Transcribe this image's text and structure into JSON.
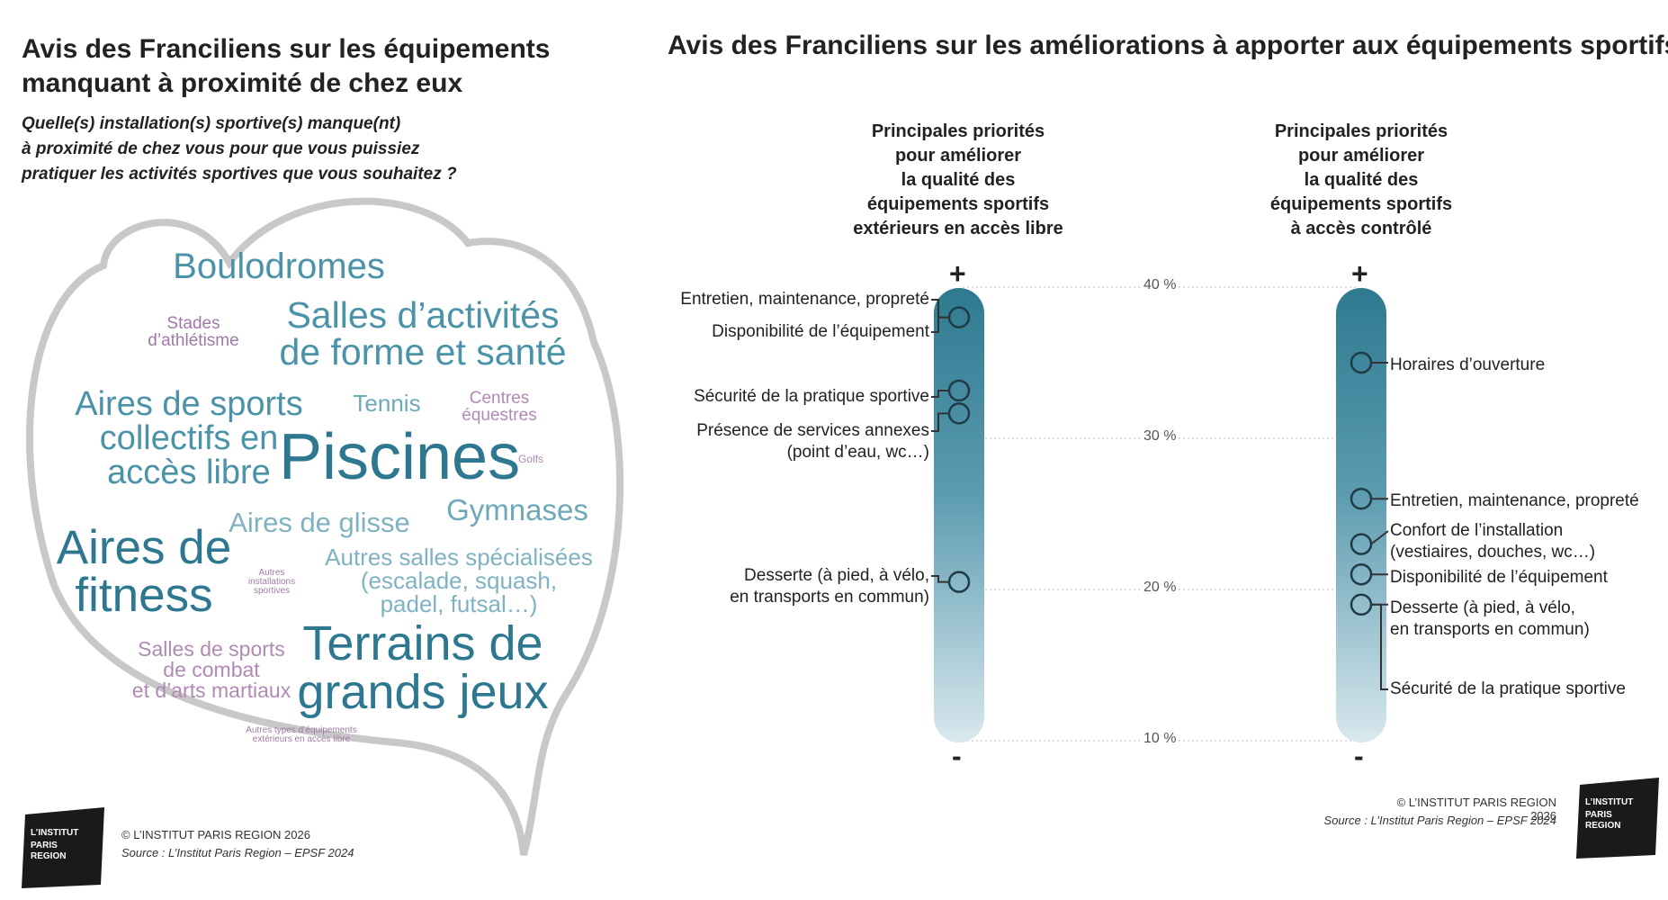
{
  "left": {
    "title": "Avis des Franciliens sur les équipements\nmanquant à proximité de chez eux",
    "question": "Quelle(s) installation(s) sportive(s) manque(nt)\nà proximité de chez vous pour que vous puissiez\npratiquer les activités sportives que vous souhaitez ?",
    "words": [
      {
        "text": "Boulodromes",
        "color": "#4a93a8"
      },
      {
        "text": "Salles d’activités\nde forme et santé",
        "color": "#4a93a8"
      },
      {
        "text": "Stades\nd’athlétisme",
        "color": "#a07aa6"
      },
      {
        "text": "Aires de sports\ncollectifs en\naccès libre",
        "color": "#4a93a8"
      },
      {
        "text": "Tennis",
        "color": "#6fa8b9"
      },
      {
        "text": "Centres\néquestres",
        "color": "#b08ab4"
      },
      {
        "text": "Piscines",
        "color": "#2d7890"
      },
      {
        "text": "Golfs",
        "color": "#b08ab4"
      },
      {
        "text": "Gymnases",
        "color": "#6fa8b9"
      },
      {
        "text": "Aires de glisse",
        "color": "#7fb2c2"
      },
      {
        "text": "Aires de\nfitness",
        "color": "#2d7890"
      },
      {
        "text": "Autres salles spécialisées\n(escalade, squash,\npadel, futsal…)",
        "color": "#7fb2c2"
      },
      {
        "text": "Autres\ninstallations\nsportives",
        "color": "#a07aa6"
      },
      {
        "text": "Salles de sports\nde combat\net d’arts martiaux",
        "color": "#b08ab4"
      },
      {
        "text": "Terrains de\ngrands jeux",
        "color": "#2d7890"
      },
      {
        "text": "Autres types d’équipements\nextérieurs en accès libre",
        "color": "#a07aa6"
      }
    ],
    "copyright": "© L’INSTITUT PARIS REGION 2026",
    "source": "Source : L’Institut Paris Region – EPSF 2024",
    "logo": [
      "L’INSTITUT",
      "PARIS",
      "REGION"
    ]
  },
  "right": {
    "title": "Avis des Franciliens sur les améliorations à apporter aux équipements sportifs",
    "copyright": "© L’INSTITUT PARIS REGION 2026",
    "source": "Source : L’Institut Paris Region – EPSF 2024",
    "logo": [
      "L’INSTITUT",
      "PARIS",
      "REGION"
    ]
  },
  "chart_data": {
    "type": "scatter",
    "title": "Avis des Franciliens sur les améliorations à apporter aux équipements sportifs",
    "y_axis": {
      "ticks": [
        40,
        30,
        20,
        10
      ],
      "tick_labels": [
        "40 %",
        "30 %",
        "20 %",
        "10 %"
      ],
      "range": [
        10,
        40
      ],
      "unit": "%"
    },
    "plus_label": "+",
    "minus_label": "-",
    "series": [
      {
        "name": "Principales priorités\npour améliorer\nla qualité des\néquipements sportifs\nextérieurs en accès libre",
        "points": [
          {
            "label": "Entretien, maintenance, propreté",
            "value": 38.0
          },
          {
            "label": "Disponibilité de l’équipement",
            "value": 38.0
          },
          {
            "label": "Sécurité de la pratique sportive",
            "value": 32.8
          },
          {
            "label": "Présence de services annexes\n(point d’eau, wc…)",
            "value": 32.0
          },
          {
            "label": "Desserte (à pied, à vélo,\nen transports en commun)",
            "value": 20.5
          }
        ]
      },
      {
        "name": "Principales priorités\npour améliorer\nla qualité des\néquipements sportifs\nà accès contrôlé",
        "points": [
          {
            "label": "Horaires d’ouverture",
            "value": 35.0
          },
          {
            "label": "Entretien, maintenance, propreté",
            "value": 26.0
          },
          {
            "label": "Confort de l’installation\n(vestiaires, douches, wc…)",
            "value": 23.0
          },
          {
            "label": "Disponibilité de l’équipement",
            "value": 21.0
          },
          {
            "label": "Desserte (à pied, à vélo,\nen transports en commun)",
            "value": 19.0
          },
          {
            "label": "Sécurité de la pratique sportive",
            "value": 19.0
          }
        ]
      }
    ]
  }
}
